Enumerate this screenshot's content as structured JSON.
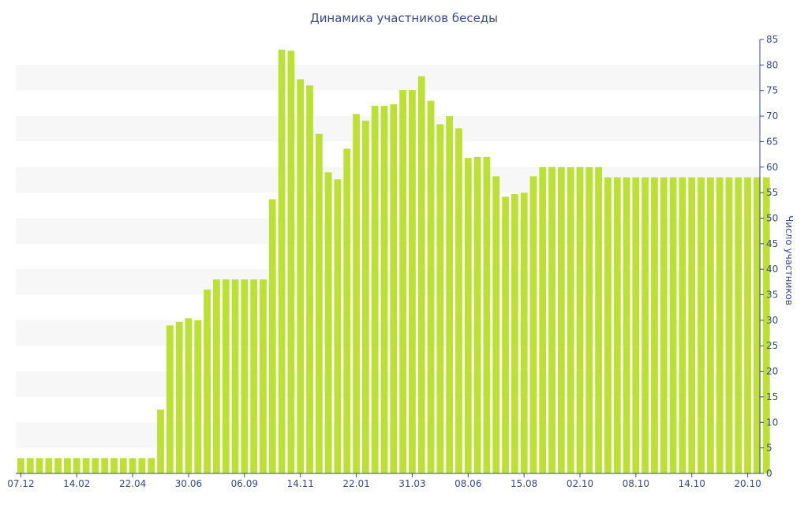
{
  "chart_data": {
    "type": "bar",
    "title": "Динамика участников беседы",
    "xlabel": "",
    "ylabel": "Число участников",
    "ylim": [
      0,
      85
    ],
    "y_ticks": [
      0,
      5,
      10,
      15,
      20,
      25,
      30,
      35,
      40,
      45,
      50,
      55,
      60,
      65,
      70,
      75,
      80,
      85
    ],
    "y_axis_position": "right",
    "grid": "alternating horizontal bands",
    "x_tick_labels": [
      {
        "label": "07.12",
        "index": 0
      },
      {
        "label": "14.02",
        "index": 6
      },
      {
        "label": "22.04",
        "index": 12
      },
      {
        "label": "30.06",
        "index": 18
      },
      {
        "label": "06.09",
        "index": 24
      },
      {
        "label": "14.11",
        "index": 30
      },
      {
        "label": "22.01",
        "index": 36
      },
      {
        "label": "31.03",
        "index": 42
      },
      {
        "label": "08.06",
        "index": 48
      },
      {
        "label": "15.08",
        "index": 54
      },
      {
        "label": "02.10",
        "index": 60
      },
      {
        "label": "08.10",
        "index": 66
      },
      {
        "label": "14.10",
        "index": 72
      },
      {
        "label": "20.10",
        "index": 78
      }
    ],
    "colors": {
      "bar": "#bde035",
      "band": "#f7f7f7",
      "text": "#3a4a8a",
      "axis": "#3a4a8a"
    },
    "values": [
      3,
      3,
      3,
      3,
      3,
      3,
      3,
      3,
      3,
      3,
      3,
      3,
      3,
      3,
      3,
      12.5,
      29,
      29.7,
      30.4,
      30,
      36,
      38,
      38,
      38,
      38,
      38,
      38,
      53.7,
      83,
      82.8,
      77.2,
      76,
      66.5,
      59,
      57.6,
      63.6,
      70.4,
      69.1,
      72,
      72,
      72.3,
      75.1,
      75.1,
      77.8,
      73,
      68.4,
      70,
      67.6,
      61.8,
      62,
      62,
      58.2,
      54.2,
      54.7,
      55,
      58.2,
      60,
      60,
      60,
      60,
      60,
      60,
      60,
      58,
      58,
      58,
      58,
      58,
      58,
      58,
      58,
      58,
      58,
      58,
      58,
      58,
      58,
      58,
      58,
      58,
      58
    ]
  }
}
